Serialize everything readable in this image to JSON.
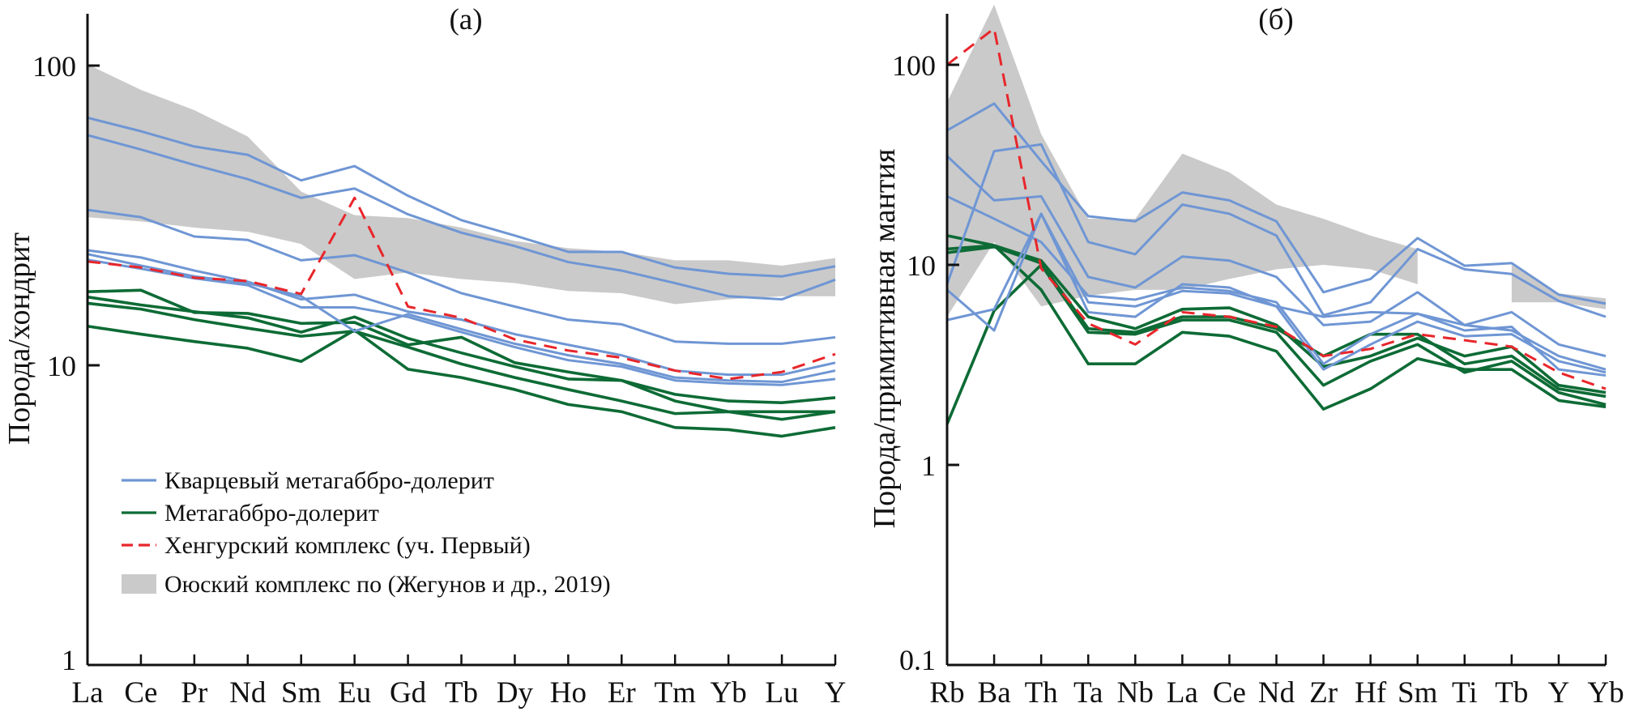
{
  "colors": {
    "quartz": "#6f96d4",
    "metagabbro": "#0d6b35",
    "khengur": "#e8262b",
    "oyus_band": "#cacaca",
    "axis": "#111111"
  },
  "legend": {
    "placement": "lower-left of panel (a)",
    "items": [
      {
        "label": "Кварцевый метагаббро-долерит",
        "style": "line",
        "color": "#6f96d4"
      },
      {
        "label": "Метагаббро-долерит",
        "style": "line",
        "color": "#0d6b35"
      },
      {
        "label": "Хенгурский комплекс (уч. Первый)",
        "style": "dashed",
        "color": "#e8262b"
      },
      {
        "label": "Оюский комплекс по (Жегунов и др., 2019)",
        "style": "band",
        "color": "#cacaca"
      }
    ]
  },
  "chart_data": [
    {
      "type": "line",
      "title": "(а)",
      "ylabel": "Порода/хондрит",
      "xlabel": "",
      "yscale": "log",
      "ylim": [
        1,
        100
      ],
      "yticks": [
        "1",
        "10",
        "100"
      ],
      "grid": false,
      "categories": [
        "La",
        "Ce",
        "Pr",
        "Nd",
        "Sm",
        "Eu",
        "Gd",
        "Tb",
        "Dy",
        "Ho",
        "Er",
        "Tm",
        "Yb",
        "Lu",
        "Y"
      ],
      "band": {
        "legend_index": 3,
        "upper": [
          101,
          83,
          71,
          58,
          38,
          31.7,
          31,
          28.8,
          26,
          24.6,
          23.9,
          22.4,
          22.4,
          21.5,
          22.8
        ],
        "lower": [
          31.2,
          30.2,
          28.8,
          27.9,
          25.4,
          19.4,
          20.4,
          19.4,
          18.8,
          17.7,
          17.4,
          16,
          16.6,
          17,
          17
        ]
      },
      "series": [
        {
          "group": 0,
          "values": [
            67,
            60.4,
            53.7,
            50.4,
            41.4,
            46.2,
            36.8,
            30.5,
            27.1,
            23.9,
            23.9,
            21.2,
            20.2,
            19.8,
            21.4
          ]
        },
        {
          "group": 0,
          "values": [
            58.6,
            52.5,
            46.6,
            41.8,
            36.2,
            38.9,
            31.9,
            27.7,
            25,
            22.1,
            20.7,
            18.8,
            17,
            16.6,
            19.3
          ]
        },
        {
          "group": 0,
          "values": [
            33,
            31.2,
            26.9,
            26.2,
            22.4,
            23.3,
            20.4,
            17.4,
            15.7,
            14.2,
            13.7,
            12,
            11.8,
            11.8,
            12.4
          ]
        },
        {
          "group": 0,
          "values": [
            24.2,
            22.9,
            20.7,
            19,
            16.6,
            17.2,
            15.1,
            14.2,
            12.7,
            11.7,
            10.8,
            9.6,
            9.3,
            9.3,
            10.2
          ]
        },
        {
          "group": 0,
          "values": [
            22.5,
            21,
            19.5,
            18.5,
            15.6,
            15.6,
            14.5,
            12.9,
            11.5,
            10.4,
            9.9,
            8.9,
            8.7,
            8.6,
            9
          ]
        },
        {
          "group": 0,
          "values": [
            23.5,
            21.5,
            19.8,
            18.8,
            17,
            13,
            14.8,
            13.2,
            11.8,
            10.8,
            10.1,
            9.1,
            8.9,
            8.8,
            9.6
          ]
        },
        {
          "group": 1,
          "values": [
            17.6,
            17.8,
            15,
            14.9,
            13.8,
            13.9,
            11.7,
            12.4,
            10.2,
            9.5,
            8.9,
            8,
            7.6,
            7.5,
            7.8
          ]
        },
        {
          "group": 1,
          "values": [
            16.9,
            15.9,
            15.1,
            14.4,
            12.9,
            14.5,
            12.3,
            11,
            9.9,
            9,
            8.9,
            7.6,
            7,
            7,
            7
          ]
        },
        {
          "group": 1,
          "values": [
            16.1,
            15.4,
            14.2,
            13.3,
            12.5,
            13,
            11.5,
            10.1,
            9.1,
            8.3,
            7.6,
            6.9,
            7,
            6.6,
            7
          ]
        },
        {
          "group": 1,
          "values": [
            13.5,
            12.7,
            12,
            11.4,
            10.3,
            13.1,
            9.7,
            9.1,
            8.3,
            7.4,
            7,
            6.2,
            6.1,
            5.8,
            6.2
          ]
        },
        {
          "group": 2,
          "values": [
            22.2,
            21.2,
            19.6,
            19.1,
            17.3,
            36.2,
            15.7,
            14.4,
            12.2,
            11.2,
            10.6,
            9.6,
            9,
            9.5,
            10.9
          ]
        }
      ]
    },
    {
      "type": "line",
      "title": "(б)",
      "ylabel": "Порода/примитивная мантия",
      "xlabel": "",
      "yscale": "log",
      "ylim": [
        0.1,
        100
      ],
      "yticks": [
        "0.1",
        "1",
        "10",
        "100"
      ],
      "grid": false,
      "categories": [
        "Rb",
        "Ba",
        "Th",
        "Ta",
        "Nb",
        "La",
        "Ce",
        "Nd",
        "Zr",
        "Hf",
        "Sm",
        "Ti",
        "Tb",
        "Y",
        "Yb"
      ],
      "band": {
        "legend_index": 3,
        "upper": [
          65,
          200,
          45,
          17,
          17,
          36,
          29,
          20,
          17,
          14,
          12,
          null,
          10,
          7.2,
          6.8
        ],
        "lower": [
          5.5,
          13,
          6.2,
          7,
          7.5,
          7.5,
          8.5,
          9.5,
          10,
          9.5,
          8,
          null,
          6.5,
          6.5,
          6
        ]
      },
      "series": [
        {
          "group": 0,
          "values": [
            47,
            64,
            33,
            17.5,
            16.5,
            23,
            21,
            16.5,
            7.3,
            8.5,
            13.6,
            9.9,
            10.2,
            7.1,
            6.4
          ]
        },
        {
          "group": 0,
          "values": [
            8,
            37,
            40,
            13,
            11.3,
            20,
            18,
            14,
            5.6,
            6.5,
            12,
            9.5,
            9,
            6.6,
            5.5
          ]
        },
        {
          "group": 0,
          "values": [
            35,
            21,
            22,
            8.7,
            7.7,
            11,
            10.5,
            8.7,
            5,
            5.2,
            7.3,
            5,
            5.8,
            4,
            3.5
          ]
        },
        {
          "group": 0,
          "values": [
            22,
            17,
            13,
            7,
            6.7,
            7.7,
            7.4,
            6.5,
            3.2,
            4.5,
            5.7,
            5,
            4.7,
            3.5,
            3
          ]
        },
        {
          "group": 0,
          "values": [
            5.3,
            6,
            18,
            5.8,
            5.5,
            8,
            7.7,
            6.2,
            5.5,
            5.8,
            5.7,
            4.7,
            4.9,
            3,
            2.8
          ]
        },
        {
          "group": 0,
          "values": [
            7.5,
            4.7,
            18,
            6.5,
            6.2,
            7.4,
            7.2,
            6.2,
            3,
            4,
            5.2,
            4.4,
            4.5,
            3.3,
            2.9
          ]
        },
        {
          "group": 1,
          "values": [
            14,
            12.5,
            10.5,
            5.5,
            4.8,
            6,
            6.1,
            5,
            3.1,
            3.5,
            4.3,
            3.5,
            3.9,
            2.5,
            2.3
          ]
        },
        {
          "group": 1,
          "values": [
            11.5,
            12.3,
            10.2,
            4.8,
            4.6,
            5.5,
            5.5,
            4.8,
            3.5,
            4.5,
            4.5,
            3.2,
            3.5,
            2.4,
            2.2
          ]
        },
        {
          "group": 1,
          "values": [
            12,
            12.5,
            7.5,
            3.2,
            3.2,
            4.6,
            4.4,
            3.7,
            1.9,
            2.4,
            3.4,
            3,
            3,
            2.1,
            1.95
          ]
        },
        {
          "group": 1,
          "values": [
            1.6,
            5.9,
            10,
            4.6,
            4.5,
            5.3,
            5.3,
            4.6,
            2.5,
            3.3,
            4,
            2.9,
            3.3,
            2.3,
            2
          ]
        },
        {
          "group": 2,
          "values": [
            100,
            152,
            9.6,
            5.1,
            4,
            5.8,
            5.5,
            4.9,
            3.5,
            3.8,
            4.5,
            4.2,
            3.9,
            2.9,
            2.4
          ]
        }
      ]
    }
  ]
}
